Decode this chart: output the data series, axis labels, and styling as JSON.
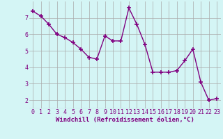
{
  "x": [
    0,
    1,
    2,
    3,
    4,
    5,
    6,
    7,
    8,
    9,
    10,
    11,
    12,
    13,
    14,
    15,
    16,
    17,
    18,
    19,
    20,
    21,
    22,
    23
  ],
  "y": [
    7.4,
    7.1,
    6.6,
    6.0,
    5.8,
    5.5,
    5.1,
    4.6,
    4.5,
    5.9,
    5.6,
    5.6,
    7.6,
    6.6,
    5.4,
    3.7,
    3.7,
    3.7,
    3.8,
    4.4,
    5.1,
    3.1,
    2.0,
    2.1
  ],
  "line_color": "#800080",
  "marker": "+",
  "marker_size": 4,
  "marker_color": "#800080",
  "bg_color": "#d4f5f5",
  "grid_color": "#aaaaaa",
  "xlabel": "Windchill (Refroidissement éolien,°C)",
  "xlim": [
    -0.5,
    23.5
  ],
  "ylim": [
    1.5,
    8.0
  ],
  "yticks": [
    2,
    3,
    4,
    5,
    6,
    7
  ],
  "xticks": [
    0,
    1,
    2,
    3,
    4,
    5,
    6,
    7,
    8,
    9,
    10,
    11,
    12,
    13,
    14,
    15,
    16,
    17,
    18,
    19,
    20,
    21,
    22,
    23
  ],
  "line_width": 1.0,
  "tick_fontsize": 6,
  "xlabel_fontsize": 6.5
}
